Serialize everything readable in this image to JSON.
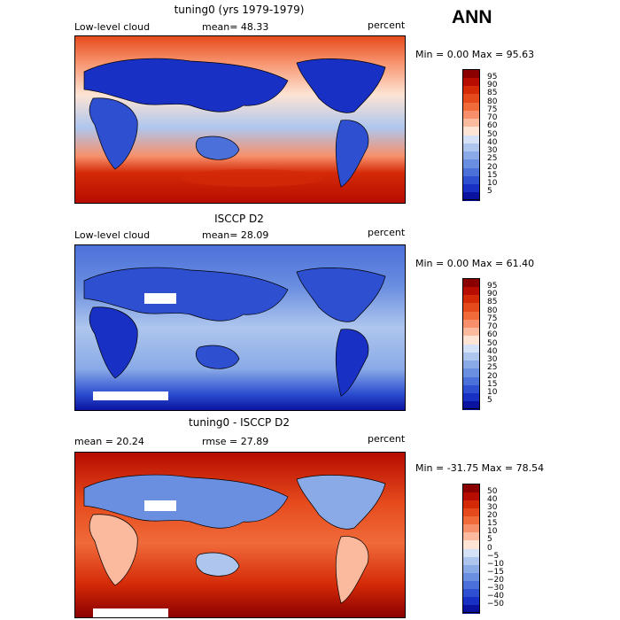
{
  "season": "ANN",
  "panels": [
    {
      "id": "model",
      "title": "tuning0 (yrs 1979-1979)",
      "left_label": "Low-level cloud",
      "mid_label": "mean=  48.33",
      "right_label": "percent",
      "minmax": "Min =    0.00 Max =  95.63",
      "colorbar": {
        "labels": [
          "95",
          "90",
          "85",
          "80",
          "75",
          "70",
          "60",
          "50",
          "40",
          "30",
          "25",
          "20",
          "15",
          "10",
          "5"
        ],
        "colors": [
          "#8a0000",
          "#b70c00",
          "#d42a08",
          "#e54a1c",
          "#f06a3a",
          "#f7906a",
          "#fbb99e",
          "#fde4d4",
          "#d5e1f6",
          "#aec6ee",
          "#8aaae7",
          "#6a8ee0",
          "#4c70da",
          "#2d4fd0",
          "#1830c4",
          "#0a13a0"
        ]
      }
    },
    {
      "id": "obs",
      "title": "ISCCP D2",
      "left_label": "Low-level cloud",
      "mid_label": "mean=  28.09",
      "right_label": "percent",
      "minmax": "Min =    0.00 Max =  61.40",
      "colorbar": {
        "labels": [
          "95",
          "90",
          "85",
          "80",
          "75",
          "70",
          "60",
          "50",
          "40",
          "30",
          "25",
          "20",
          "15",
          "10",
          "5"
        ],
        "colors": [
          "#8a0000",
          "#b70c00",
          "#d42a08",
          "#e54a1c",
          "#f06a3a",
          "#f7906a",
          "#fbb99e",
          "#fde4d4",
          "#d5e1f6",
          "#aec6ee",
          "#8aaae7",
          "#6a8ee0",
          "#4c70da",
          "#2d4fd0",
          "#1830c4",
          "#0a13a0"
        ]
      }
    },
    {
      "id": "diff",
      "title": "tuning0 - ISCCP D2",
      "left_label": "mean =   20.24",
      "mid_label": "rmse =   27.89",
      "right_label": "percent",
      "minmax": "Min = -31.75 Max =  78.54",
      "colorbar": {
        "labels": [
          "50",
          "40",
          "30",
          "20",
          "15",
          "10",
          "5",
          "0",
          "−5",
          "−10",
          "−15",
          "−20",
          "−30",
          "−40",
          "−50"
        ],
        "colors": [
          "#8a0000",
          "#b70c00",
          "#d42a08",
          "#e54a1c",
          "#f06a3a",
          "#f7906a",
          "#fbb99e",
          "#fde4d4",
          "#d5e1f6",
          "#aec6ee",
          "#8aaae7",
          "#6a8ee0",
          "#4c70da",
          "#2d4fd0",
          "#1830c4",
          "#0a13a0"
        ]
      }
    }
  ]
}
